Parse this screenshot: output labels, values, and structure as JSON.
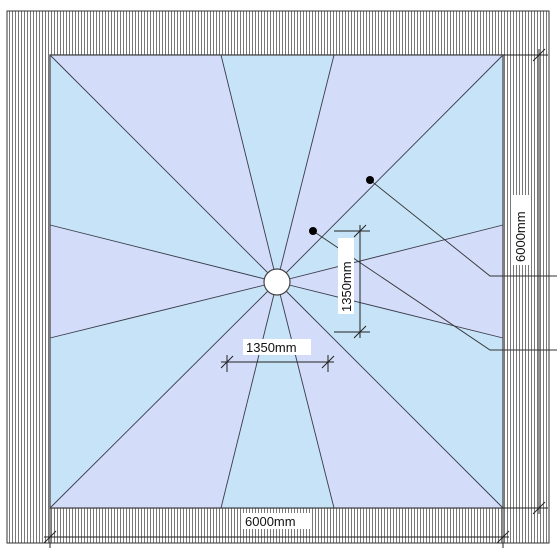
{
  "drawing": {
    "room_width_label": "6000mm",
    "room_height_label": "6000mm",
    "segment_width_label": "1350mm",
    "segment_height_label": "1350mm"
  },
  "colors": {
    "hatch_line": "#555555",
    "light_panel": "#c7e3f7",
    "lavender_panel": "#d3dcf8",
    "outline": "#444444",
    "drain_fill": "#ffffff"
  },
  "icons": {
    "drain": "circle-drain-icon",
    "leader_dot": "filled-dot-marker"
  }
}
